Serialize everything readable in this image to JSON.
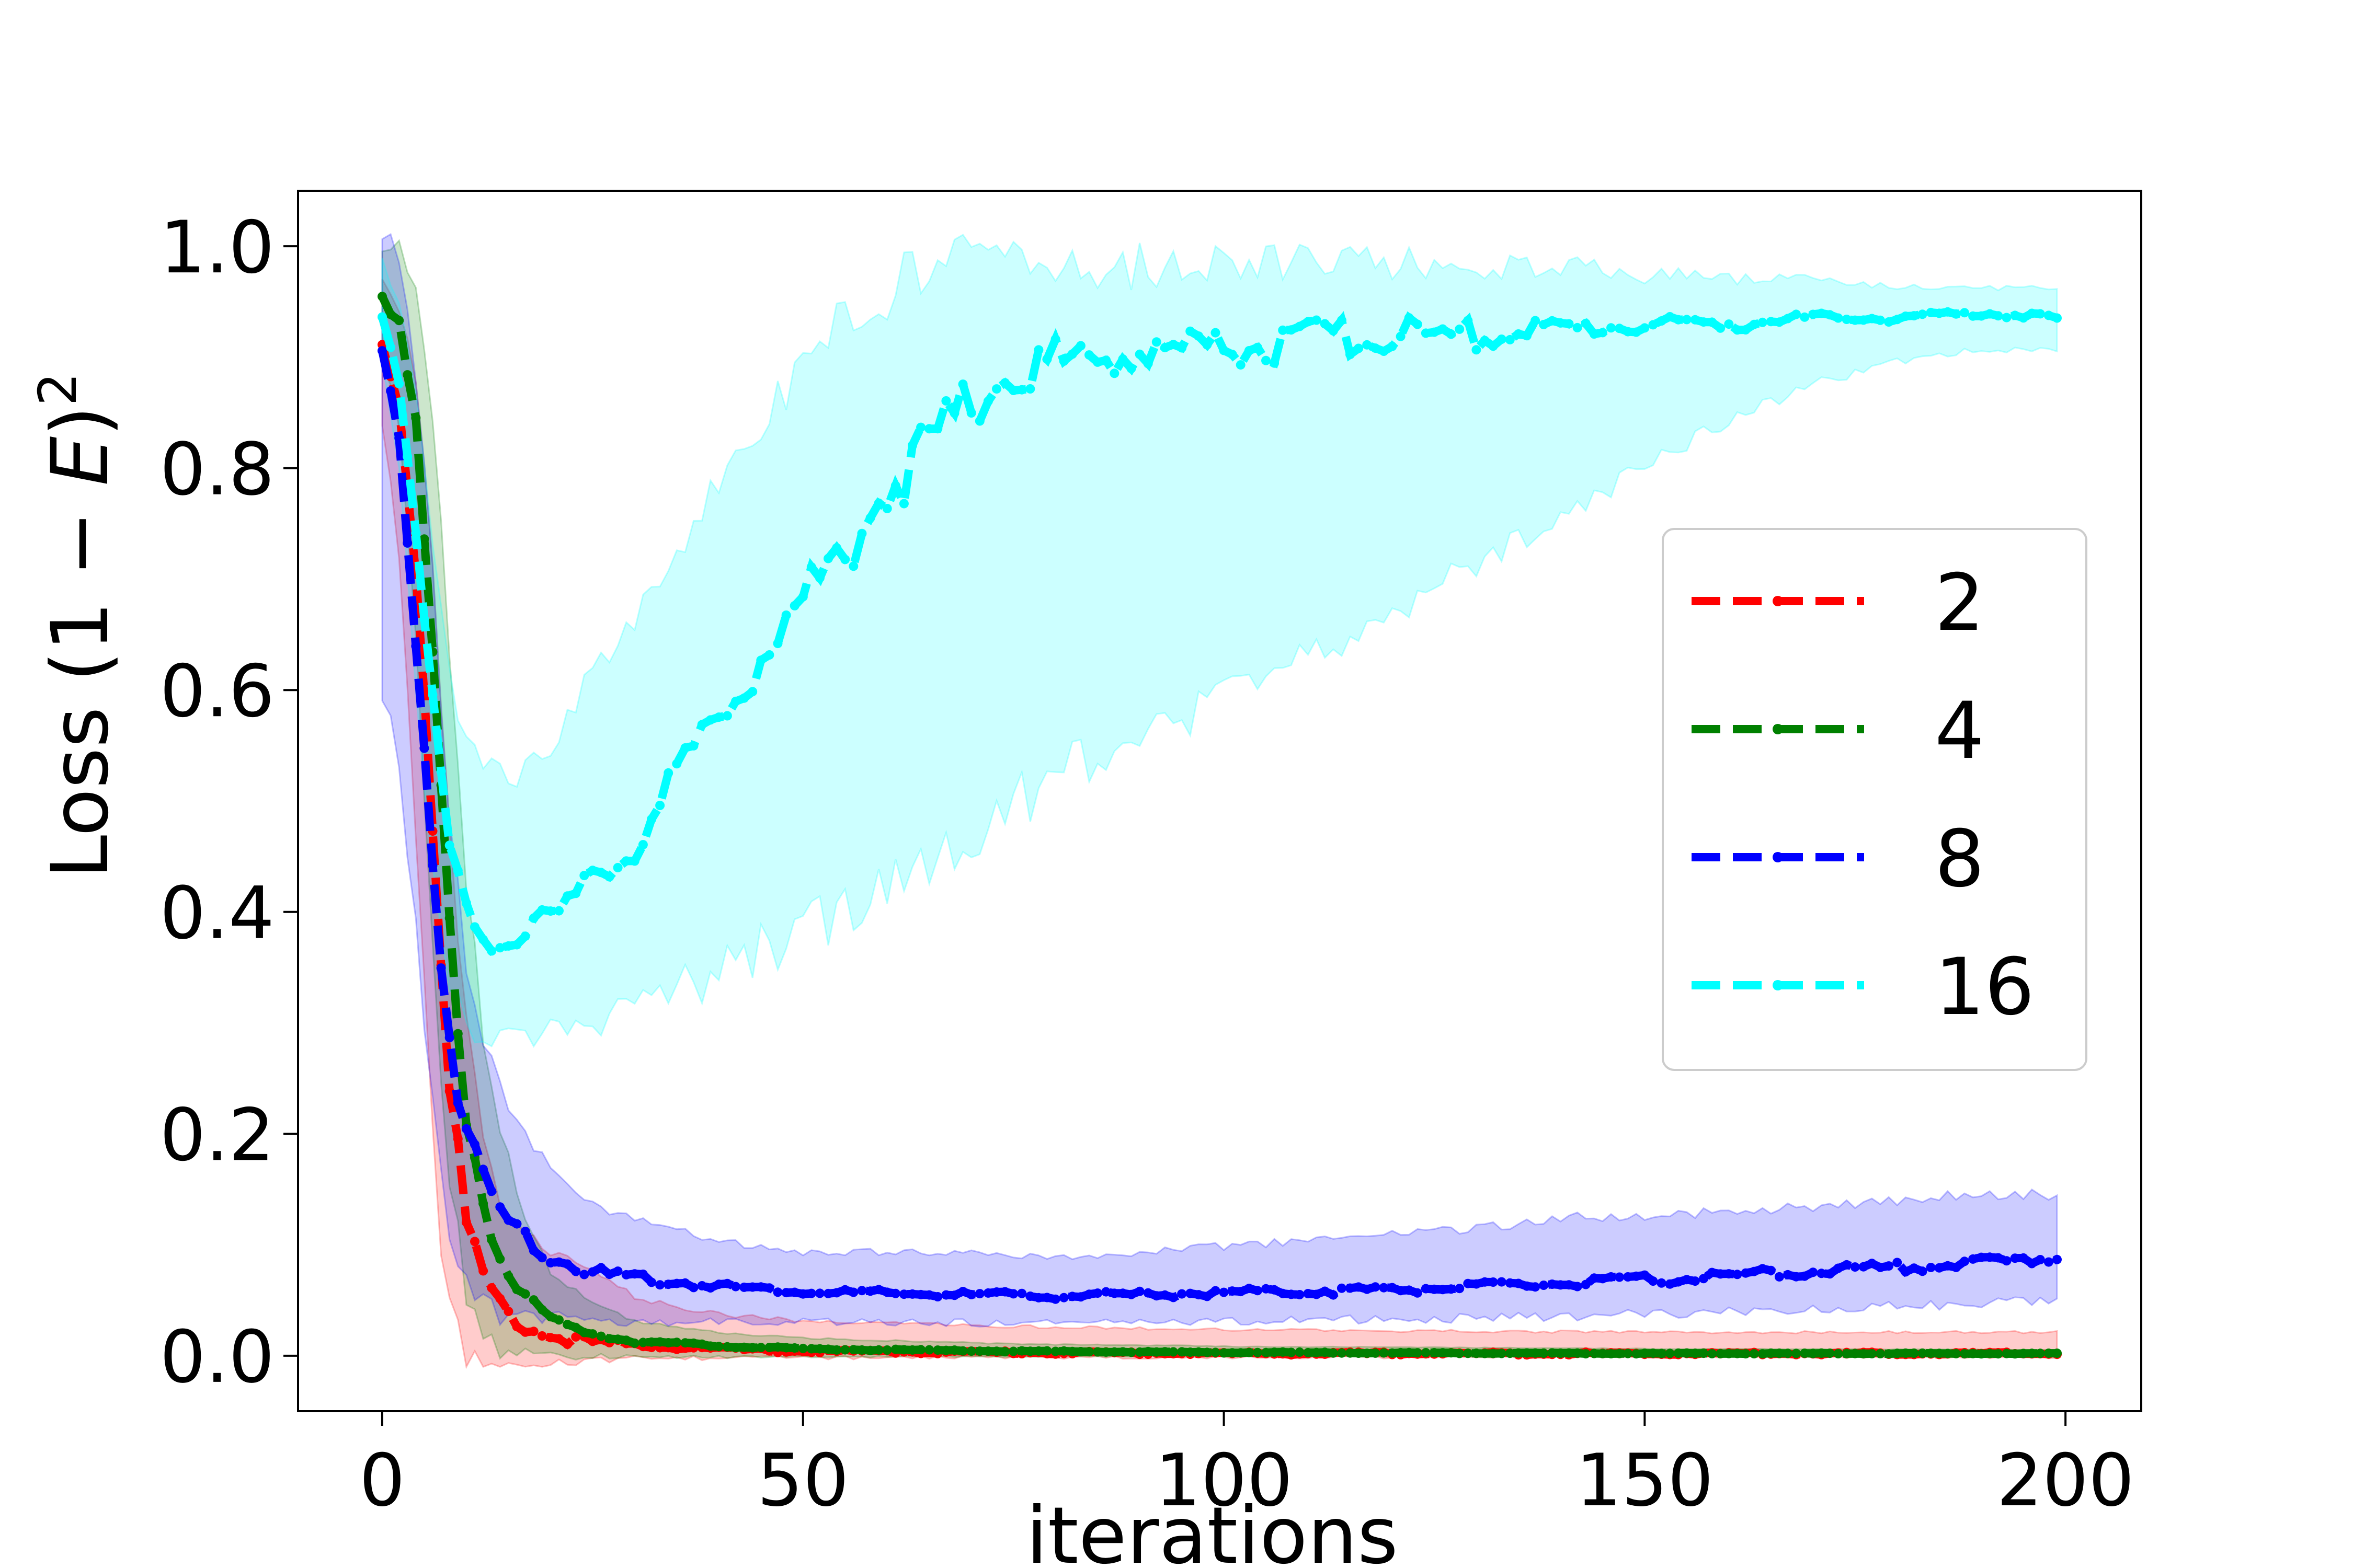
{
  "chart_data": {
    "type": "line",
    "title": "",
    "xlabel": "iterations",
    "ylabel": {
      "prefix": "Loss ",
      "open": "(1 − ",
      "var": "E",
      "close": ")",
      "sup": "2"
    },
    "xlim": [
      -10,
      209
    ],
    "ylim": [
      -0.05,
      1.05
    ],
    "xticks": [
      0,
      50,
      100,
      150,
      200
    ],
    "xtick_labels": [
      "0",
      "50",
      "100",
      "150",
      "200"
    ],
    "yticks": [
      0.0,
      0.2,
      0.4,
      0.6,
      0.8,
      1.0
    ],
    "ytick_labels": [
      "0.0",
      "0.2",
      "0.4",
      "0.6",
      "0.8",
      "1.0"
    ],
    "grid": false,
    "legend_position": "center-right",
    "series": [
      {
        "name": "2",
        "color": "#ff0000",
        "x": [
          0,
          2,
          4,
          6,
          8,
          10,
          12,
          14,
          16,
          18,
          20,
          25,
          30,
          40,
          50,
          75,
          100,
          150,
          199
        ],
        "mean": [
          0.91,
          0.86,
          0.72,
          0.48,
          0.25,
          0.12,
          0.07,
          0.045,
          0.03,
          0.022,
          0.017,
          0.012,
          0.01,
          0.006,
          0.004,
          0.003,
          0.002,
          0.002,
          0.002
        ],
        "lower": [
          0.84,
          0.74,
          0.5,
          0.22,
          0.06,
          0.01,
          0.003,
          0.002,
          0.001,
          0.0,
          0.0,
          0.0,
          0.0,
          0.0,
          0.0,
          0.0,
          0.0,
          0.0,
          0.0
        ],
        "upper": [
          0.96,
          0.94,
          0.86,
          0.7,
          0.46,
          0.28,
          0.18,
          0.13,
          0.11,
          0.1,
          0.09,
          0.07,
          0.05,
          0.035,
          0.03,
          0.025,
          0.022,
          0.02,
          0.02
        ]
      },
      {
        "name": "4",
        "color": "#008000",
        "x": [
          0,
          2,
          4,
          6,
          8,
          10,
          12,
          14,
          16,
          18,
          20,
          25,
          30,
          40,
          50,
          75,
          100,
          150,
          199
        ],
        "mean": [
          0.96,
          0.93,
          0.83,
          0.62,
          0.38,
          0.22,
          0.14,
          0.09,
          0.06,
          0.045,
          0.033,
          0.02,
          0.013,
          0.009,
          0.006,
          0.004,
          0.003,
          0.002,
          0.002
        ],
        "lower": [
          0.9,
          0.85,
          0.68,
          0.4,
          0.18,
          0.07,
          0.03,
          0.015,
          0.008,
          0.005,
          0.003,
          0.002,
          0.001,
          0.0,
          0.0,
          0.0,
          0.0,
          0.0,
          0.0
        ],
        "upper": [
          0.99,
          0.99,
          0.95,
          0.82,
          0.6,
          0.4,
          0.28,
          0.2,
          0.14,
          0.1,
          0.07,
          0.045,
          0.03,
          0.02,
          0.015,
          0.01,
          0.008,
          0.006,
          0.005
        ]
      },
      {
        "name": "8",
        "color": "#0000ff",
        "x": [
          0,
          2,
          4,
          6,
          8,
          10,
          12,
          15,
          20,
          25,
          30,
          40,
          50,
          60,
          70,
          80,
          90,
          100,
          110,
          120,
          130,
          140,
          150,
          160,
          170,
          180,
          190,
          199
        ],
        "mean": [
          0.9,
          0.82,
          0.65,
          0.45,
          0.29,
          0.2,
          0.16,
          0.12,
          0.09,
          0.075,
          0.07,
          0.063,
          0.058,
          0.056,
          0.055,
          0.054,
          0.055,
          0.057,
          0.058,
          0.06,
          0.062,
          0.065,
          0.068,
          0.072,
          0.076,
          0.08,
          0.084,
          0.088
        ],
        "lower": [
          0.63,
          0.55,
          0.4,
          0.25,
          0.13,
          0.08,
          0.06,
          0.045,
          0.04,
          0.038,
          0.036,
          0.035,
          0.034,
          0.033,
          0.033,
          0.033,
          0.034,
          0.035,
          0.036,
          0.037,
          0.038,
          0.04,
          0.042,
          0.045,
          0.048,
          0.05,
          0.052,
          0.055
        ],
        "upper": [
          0.99,
          0.95,
          0.85,
          0.68,
          0.48,
          0.34,
          0.27,
          0.22,
          0.16,
          0.13,
          0.12,
          0.1,
          0.09,
          0.09,
          0.09,
          0.085,
          0.09,
          0.095,
          0.1,
          0.105,
          0.11,
          0.12,
          0.12,
          0.125,
          0.13,
          0.135,
          0.14,
          0.14
        ]
      },
      {
        "name": "16",
        "color": "#00ffff",
        "x": [
          0,
          2,
          4,
          6,
          8,
          10,
          12,
          14,
          16,
          18,
          20,
          22,
          25,
          30,
          35,
          40,
          45,
          50,
          55,
          60,
          65,
          70,
          75,
          80,
          90,
          100,
          110,
          120,
          130,
          140,
          150,
          160,
          170,
          180,
          190,
          199
        ],
        "mean": [
          0.94,
          0.88,
          0.74,
          0.58,
          0.46,
          0.4,
          0.38,
          0.375,
          0.38,
          0.39,
          0.39,
          0.4,
          0.43,
          0.46,
          0.52,
          0.58,
          0.63,
          0.68,
          0.73,
          0.78,
          0.82,
          0.86,
          0.89,
          0.895,
          0.905,
          0.91,
          0.915,
          0.92,
          0.92,
          0.925,
          0.93,
          0.93,
          0.935,
          0.935,
          0.94,
          0.935
        ],
        "lower": [
          0.9,
          0.8,
          0.62,
          0.45,
          0.35,
          0.31,
          0.3,
          0.3,
          0.3,
          0.3,
          0.31,
          0.31,
          0.32,
          0.33,
          0.35,
          0.37,
          0.39,
          0.41,
          0.43,
          0.45,
          0.47,
          0.5,
          0.52,
          0.55,
          0.58,
          0.61,
          0.65,
          0.69,
          0.73,
          0.77,
          0.81,
          0.85,
          0.88,
          0.9,
          0.91,
          0.91
        ],
        "upper": [
          0.98,
          0.94,
          0.86,
          0.72,
          0.6,
          0.54,
          0.52,
          0.51,
          0.51,
          0.52,
          0.53,
          0.56,
          0.6,
          0.64,
          0.7,
          0.76,
          0.82,
          0.87,
          0.91,
          0.93,
          0.95,
          0.96,
          0.96,
          0.96,
          0.96,
          0.965,
          0.965,
          0.97,
          0.97,
          0.97,
          0.965,
          0.965,
          0.965,
          0.96,
          0.96,
          0.96
        ]
      }
    ]
  }
}
